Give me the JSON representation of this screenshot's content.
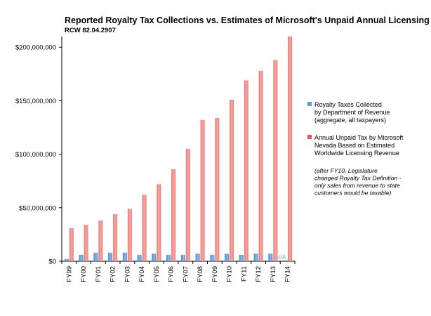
{
  "chart_data": {
    "type": "bar",
    "title": "Reported Royalty Tax Collections vs. Estimates of Microsoft's Unpaid Annual Licensing Taxes",
    "subtitle": "RCW 82.04.2907",
    "categories": [
      "FY99",
      "FY00",
      "FY01",
      "FY02",
      "FY03",
      "FY04",
      "FY05",
      "FY06",
      "FY07",
      "FY08",
      "FY09",
      "FY10",
      "FY11",
      "FY12",
      "FY13",
      "FY14"
    ],
    "series": [
      {
        "name": "Royalty Taxes Collected by Department of Revenue (aggregate, all taxpayers)",
        "label_lines": [
          "Royalty Taxes Collected",
          "by Department of Revenue",
          "(aggregate, all taxpayers)"
        ],
        "color": "#5b9bd5",
        "values": [
          2000000,
          6000000,
          8000000,
          8000000,
          8000000,
          6000000,
          7000000,
          6000000,
          6000000,
          7000000,
          6000000,
          7000000,
          6000000,
          7000000,
          7000000,
          null
        ]
      },
      {
        "name": "Annual Unpaid Tax by Microsoft Nevada Based on Estimated Worldwide Licensing Revenue",
        "label_lines": [
          "Annual Unpaid Tax by Microsoft",
          "Nevada Based on Estimated",
          "Worldwide Licensing Revenue"
        ],
        "color": "#e8524f",
        "values": [
          31000000,
          34000000,
          38000000,
          44000000,
          49000000,
          62000000,
          72000000,
          86000000,
          105000000,
          132000000,
          134000000,
          151000000,
          169000000,
          178000000,
          188000000,
          210000000
        ]
      }
    ],
    "ylim": [
      0,
      210000000
    ],
    "yticks": [
      0,
      50000000,
      100000000,
      150000000,
      200000000
    ],
    "ytick_labels": [
      "$0",
      "$50,000,000",
      "$100,000,000",
      "$150,000,000",
      "$200,000,000"
    ],
    "xlabel": "",
    "ylabel": "",
    "grid": false,
    "legend_position": "right",
    "annotations": {
      "na_label": "N/A",
      "note_lines": [
        "(after FY10, Legislature",
        "changed Royalty Tax Definition -",
        "only sales from revenue to state",
        "customers would be taxable)"
      ]
    }
  }
}
